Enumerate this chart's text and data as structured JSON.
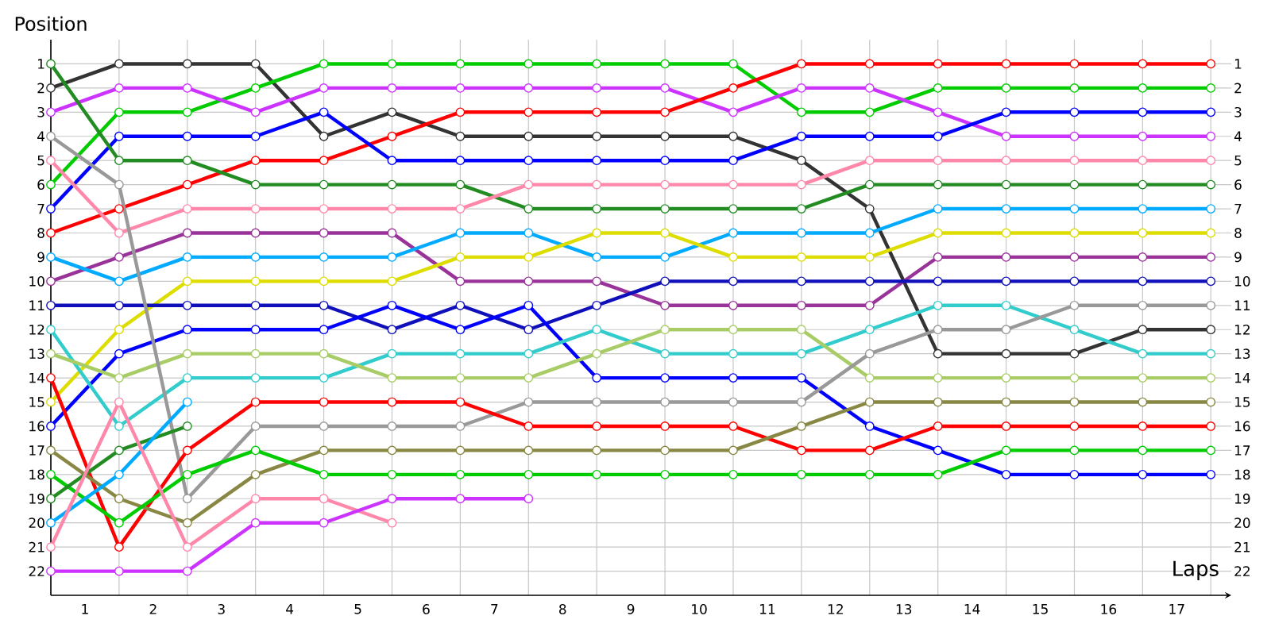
{
  "chart_data": {
    "type": "line",
    "xlabel": "Laps",
    "ylabel": "Position",
    "x": [
      0,
      1,
      2,
      3,
      4,
      5,
      6,
      7,
      8,
      9,
      10,
      11,
      12,
      13,
      14,
      15,
      16,
      17
    ],
    "xlim": [
      0,
      17.3
    ],
    "ylim": [
      23,
      0
    ],
    "y2lim": [
      23,
      0
    ],
    "xticks": [
      {
        "value": 0,
        "label": null
      },
      {
        "value": 1,
        "label": null
      },
      {
        "value": 2,
        "label": null
      },
      {
        "value": 3,
        "label": null
      },
      {
        "value": 4,
        "label": null
      },
      {
        "value": 5,
        "label": null
      },
      {
        "value": 6,
        "label": null
      },
      {
        "value": 7,
        "label": null
      },
      {
        "value": 8,
        "label": null
      },
      {
        "value": 9,
        "label": null
      },
      {
        "value": 10,
        "label": null
      },
      {
        "value": 11,
        "label": null
      },
      {
        "value": 12,
        "label": null
      },
      {
        "value": 13,
        "label": null
      },
      {
        "value": 14,
        "label": null
      },
      {
        "value": 15,
        "label": null
      },
      {
        "value": 16,
        "label": null
      },
      {
        "value": 17,
        "label": null
      },
      {
        "value": 0.5,
        "label": "1"
      },
      {
        "value": 1.5,
        "label": "2"
      },
      {
        "value": 2.5,
        "label": "3"
      },
      {
        "value": 3.5,
        "label": "4"
      },
      {
        "value": 4.5,
        "label": "5"
      },
      {
        "value": 5.5,
        "label": "6"
      },
      {
        "value": 6.5,
        "label": "7"
      },
      {
        "value": 7.5,
        "label": "8"
      },
      {
        "value": 8.5,
        "label": "9"
      },
      {
        "value": 9.5,
        "label": "10"
      },
      {
        "value": 10.5,
        "label": "11"
      },
      {
        "value": 11.5,
        "label": "12"
      },
      {
        "value": 12.5,
        "label": "13"
      },
      {
        "value": 13.5,
        "label": "14"
      },
      {
        "value": 14.5,
        "label": "15"
      },
      {
        "value": 15.5,
        "label": "16"
      },
      {
        "value": 16.5,
        "label": "17"
      }
    ],
    "yticks": [
      1,
      2,
      3,
      4,
      5,
      6,
      7,
      8,
      9,
      10,
      11,
      12,
      13,
      14,
      15,
      16,
      17,
      18,
      19,
      20,
      21,
      22
    ],
    "y2ticks": [
      1,
      2,
      3,
      4,
      5,
      6,
      7,
      8,
      9,
      10,
      11,
      12,
      13,
      14,
      15,
      16,
      17,
      18,
      19,
      20,
      21,
      22
    ],
    "grid": true,
    "marker": "circle",
    "line_style": "solid",
    "series": [
      {
        "color": "#333333",
        "values": [
          2,
          1,
          1,
          1,
          4,
          3,
          4,
          4,
          4,
          4,
          4,
          5,
          7,
          13,
          13,
          13,
          12,
          12
        ]
      },
      {
        "color": "#00cc00",
        "values": [
          6,
          3,
          3,
          2,
          1,
          1,
          1,
          1,
          1,
          1,
          1,
          3,
          3,
          2,
          2,
          2,
          2,
          2
        ]
      },
      {
        "color": "#cc33ff",
        "values": [
          3,
          2,
          2,
          3,
          2,
          2,
          2,
          2,
          2,
          2,
          3,
          2,
          2,
          3,
          4,
          4,
          4,
          4
        ]
      },
      {
        "color": "#ff0000",
        "values": [
          8,
          7,
          6,
          5,
          5,
          4,
          3,
          3,
          3,
          3,
          2,
          1,
          1,
          1,
          1,
          1,
          1,
          1
        ]
      },
      {
        "color": "#0000ff",
        "values": [
          7,
          4,
          4,
          4,
          3,
          5,
          5,
          5,
          5,
          5,
          5,
          4,
          4,
          4,
          3,
          3,
          3,
          3
        ]
      },
      {
        "color": "#228b22",
        "values": [
          1,
          5,
          5,
          6,
          6,
          6,
          6,
          7,
          7,
          7,
          7,
          7,
          6,
          6,
          6,
          6,
          6,
          6
        ]
      },
      {
        "color": "#ff88aa",
        "values": [
          5,
          8,
          7,
          7,
          7,
          7,
          7,
          6,
          6,
          6,
          6,
          6,
          5,
          5,
          5,
          5,
          5,
          5
        ]
      },
      {
        "color": "#993399",
        "values": [
          10,
          9,
          8,
          8,
          8,
          8,
          10,
          10,
          10,
          11,
          11,
          11,
          11,
          9,
          9,
          9,
          9,
          9
        ]
      },
      {
        "color": "#00aaff",
        "values": [
          9,
          10,
          9,
          9,
          9,
          9,
          8,
          8,
          9,
          9,
          8,
          8,
          8,
          7,
          7,
          7,
          7,
          7
        ]
      },
      {
        "color": "#dddd00",
        "values": [
          15,
          12,
          10,
          10,
          10,
          10,
          9,
          9,
          8,
          8,
          9,
          9,
          9,
          8,
          8,
          8,
          8,
          8
        ]
      },
      {
        "color": "#1010bb",
        "values": [
          11,
          11,
          11,
          11,
          11,
          12,
          11,
          12,
          11,
          10,
          10,
          10,
          10,
          10,
          10,
          10,
          10,
          10
        ]
      },
      {
        "color": "#0000ff",
        "values": [
          16,
          13,
          12,
          12,
          12,
          11,
          12,
          11,
          14,
          14,
          14,
          14,
          16,
          17,
          18,
          18,
          18,
          18
        ]
      },
      {
        "color": "#33cccc",
        "values": [
          12,
          16,
          14,
          14,
          14,
          13,
          13,
          13,
          12,
          13,
          13,
          13,
          12,
          11,
          11,
          12,
          13,
          13
        ]
      },
      {
        "color": "#a8cc66",
        "values": [
          13,
          14,
          13,
          13,
          13,
          14,
          14,
          14,
          13,
          12,
          12,
          12,
          14,
          14,
          14,
          14,
          14,
          14
        ]
      },
      {
        "color": "#999999",
        "values": [
          4,
          6,
          19,
          16,
          16,
          16,
          16,
          15,
          15,
          15,
          15,
          15,
          13,
          12,
          12,
          11,
          11,
          11
        ]
      },
      {
        "color": "#ff0000",
        "values": [
          14,
          21,
          17,
          15,
          15,
          15,
          15,
          16,
          16,
          16,
          16,
          17,
          17,
          16,
          16,
          16,
          16,
          16
        ]
      },
      {
        "color": "#888844",
        "values": [
          17,
          19,
          20,
          18,
          17,
          17,
          17,
          17,
          17,
          17,
          17,
          16,
          15,
          15,
          15,
          15,
          15,
          15
        ]
      },
      {
        "color": "#00cc00",
        "values": [
          18,
          20,
          18,
          17,
          18,
          18,
          18,
          18,
          18,
          18,
          18,
          18,
          18,
          18,
          17,
          17,
          17,
          17
        ]
      },
      {
        "color": "#228b22",
        "values": [
          19,
          17,
          16,
          null,
          null,
          null,
          null,
          null,
          null,
          null,
          null,
          null,
          null,
          null,
          null,
          null,
          null,
          null
        ]
      },
      {
        "color": "#00aaff",
        "values": [
          20,
          18,
          15,
          null,
          null,
          null,
          null,
          null,
          null,
          null,
          null,
          null,
          null,
          null,
          null,
          null,
          null,
          null
        ]
      },
      {
        "color": "#ff88aa",
        "values": [
          21,
          15,
          21,
          19,
          19,
          20,
          null,
          null,
          null,
          null,
          null,
          null,
          null,
          null,
          null,
          null,
          null,
          null
        ]
      },
      {
        "color": "#cc33ff",
        "values": [
          22,
          22,
          22,
          20,
          20,
          19,
          19,
          19,
          null,
          null,
          null,
          null,
          null,
          null,
          null,
          null,
          null,
          null
        ]
      }
    ]
  }
}
